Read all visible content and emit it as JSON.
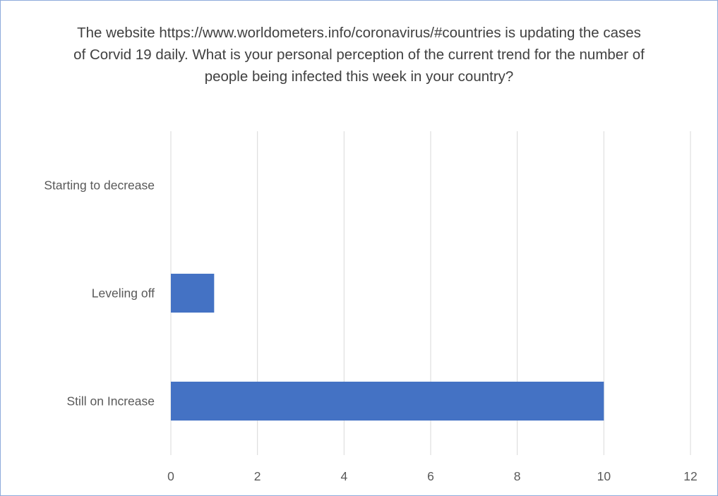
{
  "chart_data": {
    "type": "bar",
    "orientation": "horizontal",
    "title": "The website https://www.worldometers.info/coronavirus/#countries  is updating the cases of Corvid 19 daily.  What is your personal perception of the current trend for the number of people being infected this week in your country?",
    "categories": [
      "Starting to decrease",
      "Leveling off",
      "Still on Increase"
    ],
    "values": [
      0,
      1,
      10
    ],
    "xlim": [
      0,
      12
    ],
    "xticks": [
      "0",
      "2",
      "4",
      "6",
      "8",
      "10",
      "12"
    ],
    "grid": true,
    "legend": "none",
    "bar_color": "#4472c4",
    "grid_color": "#d9d9d9"
  }
}
